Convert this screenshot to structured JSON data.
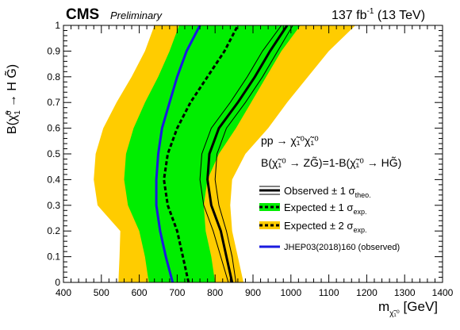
{
  "header": {
    "cms": "CMS",
    "preliminary": "Preliminary",
    "lumi": "137 fb",
    "lumi_sup": "-1",
    "energy": "(13 TeV)"
  },
  "chart_data": {
    "type": "line",
    "xlabel": {
      "main": "m",
      "sub": "χ̃₁⁰",
      "unit": "[GeV]"
    },
    "ylabel": {
      "main": "B(",
      "chi": "χ̃",
      "sub": "1",
      "sup": "0",
      "rest": " → H G̃)"
    },
    "xlim": [
      400,
      1400
    ],
    "ylim": [
      0,
      1
    ],
    "xticks": [
      400,
      500,
      600,
      700,
      800,
      900,
      1000,
      1100,
      1200,
      1300,
      1400
    ],
    "yticks": [
      0,
      0.1,
      0.2,
      0.3,
      0.4,
      0.5,
      0.6,
      0.7,
      0.8,
      0.9,
      1
    ],
    "process": {
      "line1": "pp → χ̃₁⁰χ̃₁⁰",
      "line2": "B(χ̃₁⁰ → ZG̃)=1-B(χ̃₁⁰ → HG̃)"
    },
    "legend": [
      {
        "label": "Observed ± 1 σ",
        "sub": "theo.",
        "style": "observed"
      },
      {
        "label": "Expected ± 1 σ",
        "sub": "exp.",
        "style": "exp1"
      },
      {
        "label": "Expected ± 2 σ",
        "sub": "exp.",
        "style": "exp2"
      },
      {
        "label": "JHEP03(2018)160 (observed)",
        "sub": "",
        "style": "jhep"
      }
    ],
    "colors": {
      "exp1": "#00ee00",
      "exp2": "#ffcc00",
      "jhep": "#1a1adf",
      "line": "#000000"
    },
    "band_2sigma": {
      "left": [
        [
          545,
          0
        ],
        [
          548,
          0.1
        ],
        [
          550,
          0.2
        ],
        [
          490,
          0.3
        ],
        [
          480,
          0.4
        ],
        [
          485,
          0.5
        ],
        [
          505,
          0.6
        ],
        [
          540,
          0.7
        ],
        [
          580,
          0.8
        ],
        [
          615,
          0.9
        ],
        [
          640,
          1
        ]
      ],
      "right": [
        [
          875,
          0
        ],
        [
          860,
          0.1
        ],
        [
          845,
          0.2
        ],
        [
          840,
          0.3
        ],
        [
          845,
          0.4
        ],
        [
          880,
          0.5
        ],
        [
          940,
          0.6
        ],
        [
          990,
          0.7
        ],
        [
          1045,
          0.8
        ],
        [
          1100,
          0.9
        ],
        [
          1170,
          1
        ]
      ]
    },
    "band_1sigma": {
      "left": [
        [
          625,
          0
        ],
        [
          615,
          0.1
        ],
        [
          600,
          0.2
        ],
        [
          570,
          0.3
        ],
        [
          560,
          0.4
        ],
        [
          565,
          0.5
        ],
        [
          585,
          0.6
        ],
        [
          615,
          0.7
        ],
        [
          650,
          0.8
        ],
        [
          680,
          0.9
        ],
        [
          705,
          1
        ]
      ],
      "right": [
        [
          800,
          0
        ],
        [
          790,
          0.1
        ],
        [
          775,
          0.2
        ],
        [
          770,
          0.3
        ],
        [
          780,
          0.4
        ],
        [
          810,
          0.5
        ],
        [
          855,
          0.6
        ],
        [
          895,
          0.7
        ],
        [
          935,
          0.8
        ],
        [
          975,
          0.9
        ],
        [
          1025,
          1
        ]
      ]
    },
    "expected": [
      [
        730,
        0
      ],
      [
        715,
        0.1
      ],
      [
        700,
        0.2
      ],
      [
        675,
        0.3
      ],
      [
        665,
        0.4
      ],
      [
        675,
        0.5
      ],
      [
        700,
        0.6
      ],
      [
        735,
        0.7
      ],
      [
        780,
        0.8
      ],
      [
        825,
        0.9
      ],
      [
        860,
        1
      ]
    ],
    "observed": [
      [
        845,
        0
      ],
      [
        830,
        0.1
      ],
      [
        815,
        0.2
      ],
      [
        790,
        0.3
      ],
      [
        780,
        0.4
      ],
      [
        785,
        0.5
      ],
      [
        810,
        0.6
      ],
      [
        860,
        0.7
      ],
      [
        905,
        0.8
      ],
      [
        945,
        0.9
      ],
      [
        990,
        1
      ]
    ],
    "observed_up": [
      [
        855,
        0
      ],
      [
        845,
        0.1
      ],
      [
        830,
        0.2
      ],
      [
        810,
        0.3
      ],
      [
        800,
        0.4
      ],
      [
        805,
        0.5
      ],
      [
        830,
        0.6
      ],
      [
        880,
        0.7
      ],
      [
        925,
        0.8
      ],
      [
        965,
        0.9
      ],
      [
        1005,
        1
      ]
    ],
    "observed_down": [
      [
        835,
        0
      ],
      [
        815,
        0.1
      ],
      [
        795,
        0.2
      ],
      [
        770,
        0.3
      ],
      [
        760,
        0.4
      ],
      [
        765,
        0.5
      ],
      [
        790,
        0.6
      ],
      [
        840,
        0.7
      ],
      [
        885,
        0.8
      ],
      [
        925,
        0.9
      ],
      [
        975,
        1
      ]
    ],
    "jhep": [
      [
        688,
        0
      ],
      [
        670,
        0.1
      ],
      [
        655,
        0.2
      ],
      [
        645,
        0.3
      ],
      [
        645,
        0.4
      ],
      [
        650,
        0.5
      ],
      [
        660,
        0.6
      ],
      [
        680,
        0.7
      ],
      [
        700,
        0.8
      ],
      [
        725,
        0.9
      ],
      [
        760,
        1
      ]
    ]
  }
}
